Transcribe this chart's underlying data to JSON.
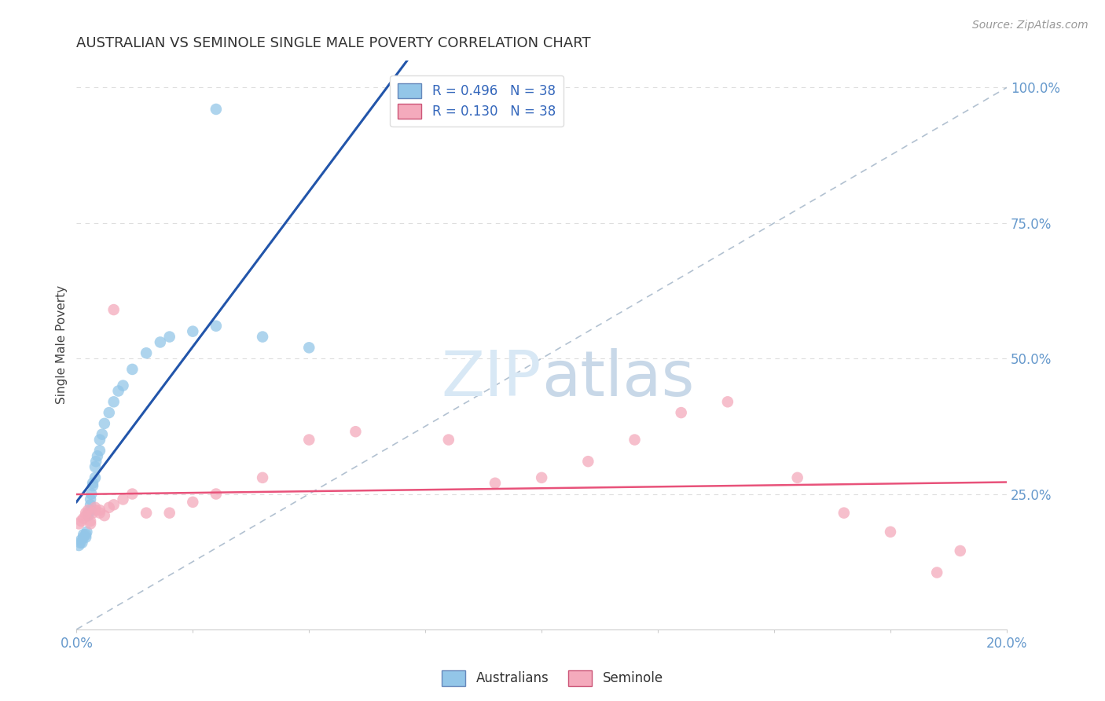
{
  "title": "AUSTRALIAN VS SEMINOLE SINGLE MALE POVERTY CORRELATION CHART",
  "source": "Source: ZipAtlas.com",
  "ylabel": "Single Male Poverty",
  "right_yticks": [
    "100.0%",
    "75.0%",
    "50.0%",
    "25.0%"
  ],
  "right_ytick_vals": [
    1.0,
    0.75,
    0.5,
    0.25
  ],
  "australians_color": "#93C6E8",
  "seminole_color": "#F4AABC",
  "trendline_aus_color": "#2255AA",
  "trendline_sem_color": "#E8527A",
  "diagonal_color": "#AABBCC",
  "background_color": "#FFFFFF",
  "grid_color": "#DDDDDD",
  "title_color": "#333333",
  "source_color": "#999999",
  "axis_label_color": "#6699CC",
  "legend_aus_color": "#93C6E8",
  "legend_sem_color": "#F4AABC",
  "watermark_color": "#D8E8F5",
  "aus_x": [
    0.0005,
    0.0008,
    0.001,
    0.0012,
    0.0015,
    0.0015,
    0.002,
    0.002,
    0.0022,
    0.0025,
    0.0025,
    0.003,
    0.003,
    0.003,
    0.0032,
    0.0035,
    0.0035,
    0.004,
    0.004,
    0.0042,
    0.0045,
    0.005,
    0.005,
    0.0055,
    0.006,
    0.007,
    0.008,
    0.009,
    0.01,
    0.012,
    0.015,
    0.018,
    0.02,
    0.025,
    0.03,
    0.04,
    0.05,
    0.03
  ],
  "aus_y": [
    0.155,
    0.16,
    0.165,
    0.16,
    0.17,
    0.175,
    0.17,
    0.175,
    0.18,
    0.21,
    0.215,
    0.22,
    0.23,
    0.24,
    0.25,
    0.265,
    0.27,
    0.28,
    0.3,
    0.31,
    0.32,
    0.33,
    0.35,
    0.36,
    0.38,
    0.4,
    0.42,
    0.44,
    0.45,
    0.48,
    0.51,
    0.53,
    0.54,
    0.55,
    0.56,
    0.54,
    0.52,
    0.96
  ],
  "sem_x": [
    0.0005,
    0.001,
    0.0015,
    0.002,
    0.002,
    0.0025,
    0.003,
    0.003,
    0.0035,
    0.004,
    0.004,
    0.005,
    0.005,
    0.006,
    0.007,
    0.008,
    0.01,
    0.012,
    0.015,
    0.02,
    0.025,
    0.03,
    0.04,
    0.05,
    0.06,
    0.08,
    0.09,
    0.1,
    0.11,
    0.12,
    0.13,
    0.14,
    0.155,
    0.165,
    0.175,
    0.185,
    0.19,
    0.008
  ],
  "sem_y": [
    0.195,
    0.2,
    0.205,
    0.21,
    0.215,
    0.22,
    0.195,
    0.2,
    0.215,
    0.22,
    0.225,
    0.215,
    0.22,
    0.21,
    0.225,
    0.23,
    0.24,
    0.25,
    0.215,
    0.215,
    0.235,
    0.25,
    0.28,
    0.35,
    0.365,
    0.35,
    0.27,
    0.28,
    0.31,
    0.35,
    0.4,
    0.42,
    0.28,
    0.215,
    0.18,
    0.105,
    0.145,
    0.59
  ],
  "xlim": [
    0.0,
    0.2
  ],
  "ylim": [
    0.0,
    1.05
  ],
  "aus_trendline_x0": 0.0,
  "aus_trendline_x1": 0.2,
  "sem_trendline_x0": 0.0,
  "sem_trendline_x1": 0.2
}
